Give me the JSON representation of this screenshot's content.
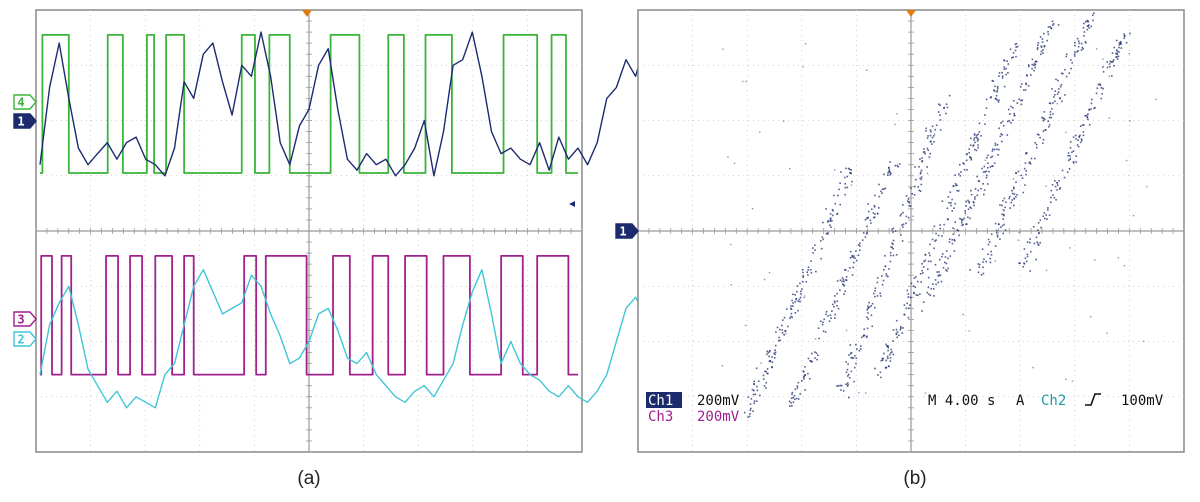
{
  "panels": {
    "a": {
      "caption": "(a)"
    },
    "b": {
      "caption": "(b)"
    }
  },
  "colors": {
    "ch1": "#1c2b6e",
    "ch2": "#3fc6d6",
    "ch3": "#a2208e",
    "ch4": "#3ab53a",
    "trigger": "#e07b10",
    "grid": "#c4c4c4",
    "frame": "#888888"
  },
  "readout": {
    "ch1_label": "Ch1",
    "ch1_scale": "200mV",
    "ch3_label": "Ch3",
    "ch3_scale": "200mV",
    "timebase": "M 4.00 s",
    "trigger_mode": "A",
    "trigger_source": "Ch2",
    "trigger_slope_icon": "rising-edge-icon",
    "trigger_level": "100mV"
  },
  "chart_data": [
    {
      "type": "line",
      "panel": "a",
      "grid": true,
      "x_divisions": 10,
      "y_divisions": 8,
      "x_range": [
        0,
        10
      ],
      "y_range": [
        0,
        8
      ],
      "series": [
        {
          "marker": "4",
          "channel": "ch4",
          "kind": "square",
          "high": 7.55,
          "low": 5.05,
          "edges": [
            0.1,
            1.2,
            2.82,
            3.45,
            4.45,
            4.75,
            5.25,
            6.0,
            8.4,
            8.95,
            9.55,
            10.4,
            12.1,
            13.3,
            14.5,
            15.15,
            16.05,
            17.15,
            19.3,
            20.7,
            21.3,
            21.9
          ],
          "end": 22.4
        },
        {
          "marker": "1",
          "channel": "ch1",
          "kind": "analog",
          "x_step": 0.4,
          "values": [
            5.2,
            6.6,
            7.4,
            6.4,
            5.5,
            5.2,
            5.4,
            5.6,
            5.3,
            5.6,
            5.7,
            5.3,
            5.2,
            5.0,
            5.5,
            6.7,
            6.4,
            7.2,
            7.4,
            6.7,
            6.1,
            7.0,
            6.8,
            7.6,
            6.8,
            5.6,
            5.2,
            5.9,
            6.2,
            7.0,
            7.3,
            6.2,
            5.3,
            5.1,
            5.4,
            5.2,
            5.3,
            5.0,
            5.2,
            5.5,
            6.0,
            5.0,
            5.8,
            7.0,
            7.1,
            7.6,
            6.8,
            5.8,
            5.4,
            5.5,
            5.3,
            5.2,
            5.6,
            5.1,
            5.7,
            5.3,
            5.5,
            5.2,
            5.6,
            6.4,
            6.6,
            7.1,
            6.8,
            7.4,
            6.3,
            6.4,
            5.6,
            5.4,
            5.0,
            5.2,
            5.6,
            4.9,
            5.5,
            6.6,
            7.0,
            7.6,
            7.2,
            6.7,
            6.3,
            6.8,
            6.9,
            6.4,
            6.6,
            7.1,
            6.5,
            5.7,
            5.2,
            4.9,
            5.3,
            6.2,
            6.6,
            6.7,
            6.5,
            7.1,
            7.0,
            6.2,
            5.5,
            5.6,
            5.2,
            5.2,
            5.8,
            6.6,
            7.2,
            7.1,
            6.2,
            5.3,
            5.6,
            6.1,
            5.6,
            5.0,
            5.2,
            5.4,
            6.1,
            6.8,
            6.6,
            6.1
          ]
        },
        {
          "marker": "3",
          "channel": "ch3",
          "kind": "square",
          "high": 3.55,
          "low": 1.4,
          "edges": [
            0.05,
            0.5,
            0.9,
            1.3,
            2.75,
            3.25,
            3.75,
            4.25,
            4.8,
            5.5,
            6.0,
            6.4,
            8.5,
            9.0,
            9.4,
            11.1,
            12.2,
            12.9,
            13.85,
            14.5,
            15.2,
            16.1,
            16.8,
            17.9,
            19.2,
            20.1,
            20.7,
            22.0
          ],
          "end": 22.4
        },
        {
          "marker": "2",
          "channel": "ch2",
          "kind": "analog",
          "x_step": 0.4,
          "values": [
            1.4,
            2.3,
            2.7,
            3.0,
            2.3,
            1.5,
            1.2,
            0.9,
            1.1,
            0.8,
            1.0,
            0.9,
            0.8,
            1.4,
            1.6,
            2.3,
            3.0,
            3.3,
            2.9,
            2.5,
            2.6,
            2.7,
            3.2,
            3.0,
            2.5,
            2.1,
            1.6,
            1.7,
            2.0,
            2.5,
            2.6,
            2.2,
            1.7,
            1.6,
            1.8,
            1.4,
            1.2,
            1.0,
            0.9,
            1.1,
            1.2,
            1.0,
            1.3,
            1.6,
            2.3,
            2.9,
            3.3,
            2.5,
            1.6,
            2.0,
            1.6,
            1.4,
            1.3,
            1.1,
            1.0,
            1.2,
            1.0,
            0.9,
            1.1,
            1.4,
            2.0,
            2.6,
            2.8,
            2.5,
            2.9,
            2.6,
            2.4,
            2.0,
            1.6,
            1.4,
            1.2,
            1.1,
            1.4,
            2.0,
            2.5,
            2.8,
            3.1,
            3.0,
            2.8,
            3.2,
            3.0,
            2.7,
            2.6,
            2.9,
            2.6,
            2.2,
            1.9,
            1.6,
            1.3,
            1.7,
            2.3,
            2.6,
            2.5,
            2.8,
            3.0,
            2.9,
            2.4,
            2.1,
            1.8,
            1.6,
            1.9,
            2.2,
            2.6,
            2.8,
            2.4,
            1.9,
            1.7,
            2.0,
            1.9,
            1.6,
            1.7,
            2.0,
            2.4,
            2.8,
            2.6
          ]
        }
      ]
    },
    {
      "type": "scatter",
      "panel": "b",
      "grid": true,
      "x_divisions": 10,
      "y_divisions": 8,
      "x_range": [
        -5,
        5
      ],
      "y_range": [
        -4,
        4
      ],
      "marker": "1",
      "clusters": [
        {
          "x0": -3.0,
          "y0": -3.3,
          "x1": -1.1,
          "y1": 1.2,
          "density": 160
        },
        {
          "x0": -2.2,
          "y0": -3.1,
          "x1": -0.3,
          "y1": 1.3,
          "density": 150
        },
        {
          "x0": -1.3,
          "y0": -3.0,
          "x1": 0.6,
          "y1": 2.4,
          "density": 170
        },
        {
          "x0": -0.6,
          "y0": -2.6,
          "x1": 1.9,
          "y1": 3.4,
          "density": 200
        },
        {
          "x0": 0.2,
          "y0": -1.4,
          "x1": 2.6,
          "y1": 3.8,
          "density": 190
        },
        {
          "x0": 1.2,
          "y0": -0.8,
          "x1": 3.3,
          "y1": 3.9,
          "density": 170
        },
        {
          "x0": 2.0,
          "y0": -0.7,
          "x1": 3.9,
          "y1": 3.6,
          "density": 150
        }
      ]
    }
  ]
}
